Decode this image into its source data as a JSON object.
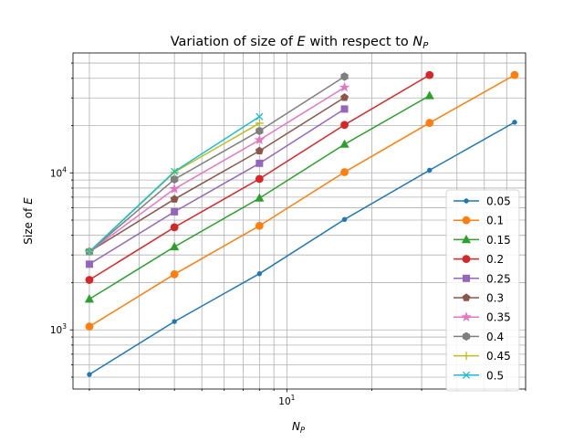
{
  "chart_data": {
    "type": "line",
    "title": "Variation of size of E with respect to N_P",
    "title_parts": {
      "prefix": "Variation of size of ",
      "sym": "E",
      "mid": " with respect to ",
      "sym2": "N",
      "sub2": "P"
    },
    "xlabel_parts": {
      "sym": "N",
      "sub": "P"
    },
    "ylabel_parts": {
      "prefix": "Size of ",
      "sym": "E"
    },
    "xscale": "log",
    "yscale": "log",
    "xlim": [
      1.75,
      70
    ],
    "ylim": [
      420,
      58000
    ],
    "x_tick_labels": [
      {
        "value": 10,
        "base": "10",
        "exp": "1"
      }
    ],
    "y_tick_labels": [
      {
        "value": 1000,
        "base": "10",
        "exp": "3"
      },
      {
        "value": 10000,
        "base": "10",
        "exp": "4"
      }
    ],
    "grid": true,
    "legend_position": "lower-right",
    "series": [
      {
        "name": "0.05",
        "color": "#1f77b4",
        "marker": "point",
        "x": [
          2,
          4,
          8,
          16,
          32,
          64
        ],
        "y": [
          520,
          1130,
          2280,
          5050,
          10400,
          21000
        ]
      },
      {
        "name": "0.1",
        "color": "#ff7f0e",
        "marker": "circle",
        "x": [
          2,
          4,
          8,
          16,
          32,
          64
        ],
        "y": [
          1050,
          2260,
          4600,
          10100,
          20800,
          42000
        ]
      },
      {
        "name": "0.15",
        "color": "#2ca02c",
        "marker": "triangle",
        "x": [
          2,
          4,
          8,
          16,
          32
        ],
        "y": [
          1570,
          3380,
          6900,
          15200,
          31000
        ]
      },
      {
        "name": "0.2",
        "color": "#d62728",
        "marker": "circle",
        "x": [
          2,
          4,
          8,
          16,
          32
        ],
        "y": [
          2080,
          4500,
          9150,
          20200,
          42000
        ]
      },
      {
        "name": "0.25",
        "color": "#9467bd",
        "marker": "square",
        "x": [
          2,
          4,
          8,
          16
        ],
        "y": [
          2620,
          5650,
          11500,
          25500
        ]
      },
      {
        "name": "0.3",
        "color": "#8c564b",
        "marker": "pentagon",
        "x": [
          2,
          4,
          8,
          16
        ],
        "y": [
          3150,
          6800,
          13800,
          30200
        ]
      },
      {
        "name": "0.35",
        "color": "#e377c2",
        "marker": "star",
        "x": [
          2,
          4,
          8,
          16
        ],
        "y": [
          3150,
          7900,
          16200,
          35000
        ]
      },
      {
        "name": "0.4",
        "color": "#7f7f7f",
        "marker": "hexagon",
        "x": [
          2,
          4,
          8,
          16
        ],
        "y": [
          3150,
          9100,
          18500,
          41000
        ]
      },
      {
        "name": "0.45",
        "color": "#bcbd22",
        "marker": "plus",
        "x": [
          2,
          4,
          8
        ],
        "y": [
          3150,
          10100,
          20700
        ]
      },
      {
        "name": "0.5",
        "color": "#17becf",
        "marker": "x",
        "x": [
          2,
          4,
          8
        ],
        "y": [
          3150,
          10200,
          22800
        ]
      }
    ]
  }
}
